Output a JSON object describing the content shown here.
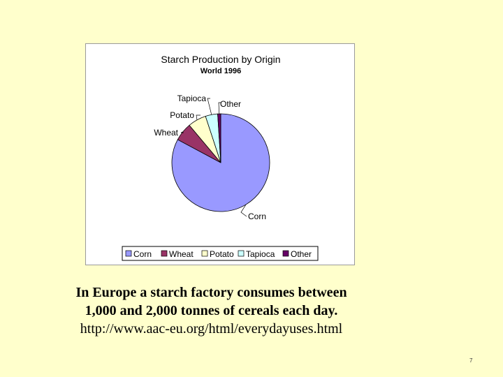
{
  "chart_data": {
    "type": "pie",
    "title": "Starch Production by Origin",
    "subtitle": "World 1996",
    "categories": [
      "Corn",
      "Wheat",
      "Potato",
      "Tapioca",
      "Other"
    ],
    "values": [
      82,
      6,
      6,
      4,
      1
    ],
    "unit": "",
    "colors": [
      "#9999ff",
      "#993366",
      "#ffffcc",
      "#ccffff",
      "#660066"
    ],
    "legend_position": "bottom",
    "grid": false
  },
  "caption": {
    "line1": "In Europe a starch factory consumes between",
    "line2": "1,000 and 2,000 tonnes of cereals each day.",
    "line3": "http://www.aac-eu.org/html/everydayuses.html"
  },
  "slide_number": "7"
}
